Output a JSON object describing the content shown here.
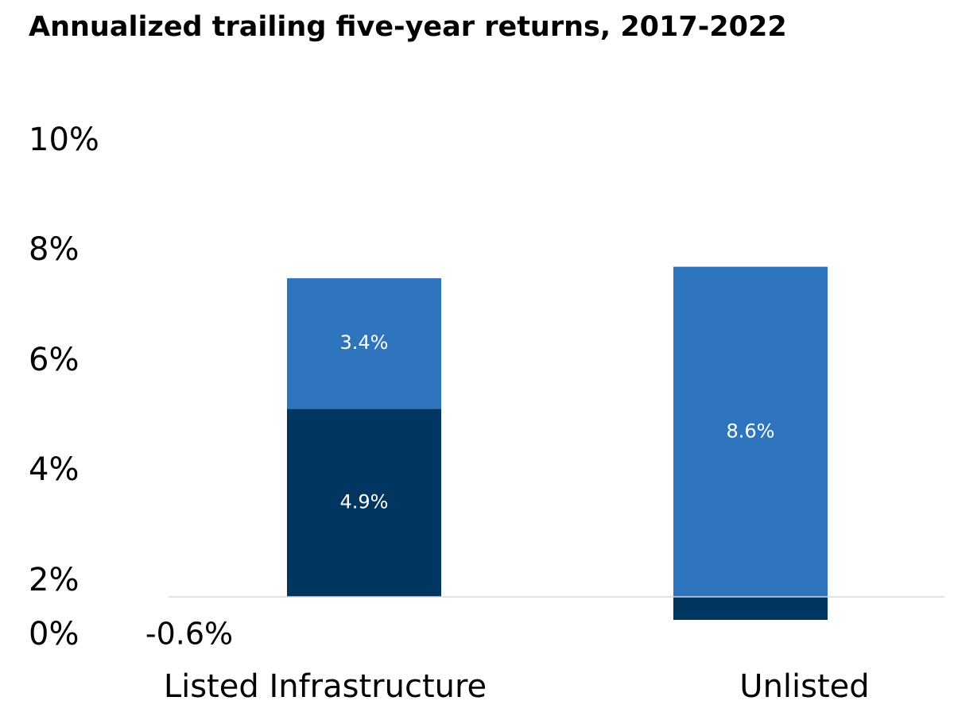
{
  "chart_data": {
    "type": "bar",
    "stacked": true,
    "title": "Annualized trailing five-year returns, 2017-2022",
    "xlabel": "",
    "ylabel": "",
    "categories": [
      "Listed Infrastructure",
      "Unlisted"
    ],
    "y_tick_labels": [
      "0%",
      "2%",
      "4%",
      "6%",
      "8%",
      "10%"
    ],
    "ylim": [
      -0.6,
      10
    ],
    "grid": false,
    "legend": "none",
    "series": [
      {
        "color": "#003660",
        "values": [
          4.9,
          -0.6
        ],
        "labels": [
          "4.9%",
          "-0.6%"
        ],
        "label_colors": [
          "#ffffff",
          "#000000"
        ]
      },
      {
        "color": "#2e75bd",
        "values": [
          3.4,
          8.6
        ],
        "labels": [
          "3.4%",
          "8.6%"
        ],
        "label_colors": [
          "#ffffff",
          "#ffffff"
        ]
      }
    ],
    "baseline_color": "#d9d9d9"
  }
}
